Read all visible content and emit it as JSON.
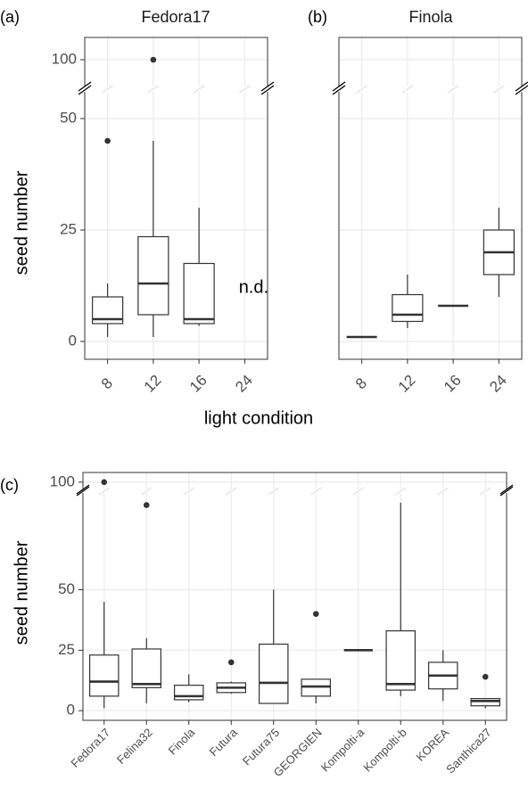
{
  "chart_data": [
    {
      "type": "box",
      "panel": "(a)",
      "title": "Fedora17",
      "ylabel": "seed number",
      "xlabel": "light condition",
      "categories": [
        "8",
        "12",
        "16",
        "24"
      ],
      "boxes": [
        {
          "min": 1,
          "q1": 4,
          "median": 5,
          "q3": 10,
          "max": 13,
          "outliers": [
            45
          ]
        },
        {
          "min": 1,
          "q1": 6,
          "median": 13,
          "q3": 23.5,
          "max": 45,
          "outliers": [
            100
          ]
        },
        {
          "min": 3.5,
          "q1": 4,
          "median": 5,
          "q3": 17.5,
          "max": 30,
          "outliers": []
        },
        null
      ],
      "annotations": [
        {
          "text": "n.d.",
          "x": "24"
        }
      ],
      "ylim": [
        -4,
        105
      ],
      "ybreak": [
        56,
        94
      ],
      "yticks": [
        0,
        25,
        50,
        100
      ],
      "ytick_labels": true,
      "grid": true,
      "color": "#333333"
    },
    {
      "type": "box",
      "panel": "(b)",
      "title": "Finola",
      "categories": [
        "8",
        "12",
        "16",
        "24"
      ],
      "boxes": [
        {
          "min": 1,
          "q1": 1,
          "median": 1,
          "q3": 1,
          "max": 1,
          "outliers": []
        },
        {
          "min": 3,
          "q1": 4.5,
          "median": 6,
          "q3": 10.5,
          "max": 15,
          "outliers": []
        },
        {
          "min": 8,
          "q1": 8,
          "median": 8,
          "q3": 8,
          "max": 8,
          "outliers": []
        },
        {
          "min": 10,
          "q1": 15,
          "median": 20,
          "q3": 25,
          "max": 30,
          "outliers": []
        }
      ],
      "ylim": [
        -4,
        105
      ],
      "ybreak": [
        56,
        94
      ],
      "yticks": [
        0,
        25,
        50,
        100
      ],
      "ytick_labels": false,
      "grid": true,
      "color": "#333333"
    },
    {
      "type": "box",
      "panel": "(c)",
      "ylabel": "seed number",
      "categories": [
        "Fedora17",
        "Felina32",
        "Finola",
        "Futura",
        "Futura75",
        "GEORGIEN",
        "Kompolti-a",
        "Kompolti-b",
        "KOREA",
        "Santhica27"
      ],
      "boxes": [
        {
          "min": 1,
          "q1": 6,
          "median": 12,
          "q3": 23,
          "max": 45,
          "outliers": [
            100
          ]
        },
        {
          "min": 3,
          "q1": 9.5,
          "median": 11,
          "q3": 25.5,
          "max": 30,
          "outliers": [
            85
          ]
        },
        {
          "min": 3.5,
          "q1": 4.5,
          "median": 6,
          "q3": 10.5,
          "max": 15,
          "outliers": []
        },
        {
          "min": 7,
          "q1": 7.5,
          "median": 9.5,
          "q3": 11.5,
          "max": 12,
          "outliers": [
            20
          ]
        },
        {
          "min": 3,
          "q1": 3,
          "median": 11.5,
          "q3": 27.5,
          "max": 50,
          "outliers": []
        },
        {
          "min": 3,
          "q1": 6,
          "median": 10,
          "q3": 13,
          "max": 13,
          "outliers": [
            40
          ]
        },
        {
          "min": 25,
          "q1": 25,
          "median": 25,
          "q3": 25,
          "max": 25,
          "outliers": []
        },
        {
          "min": 6,
          "q1": 8.5,
          "median": 11,
          "q3": 33,
          "max": 86,
          "outliers": []
        },
        {
          "min": 4,
          "q1": 9,
          "median": 14.5,
          "q3": 20,
          "max": 25,
          "outliers": []
        },
        {
          "min": 1,
          "q1": 2,
          "median": 4,
          "q3": 5,
          "max": 5,
          "outliers": [
            14
          ]
        }
      ],
      "ylim": [
        -4,
        104
      ],
      "ybreak": [
        90,
        97
      ],
      "yticks": [
        0,
        25,
        50,
        100
      ],
      "ytick_labels": true,
      "grid": true,
      "color": "#333333"
    }
  ]
}
